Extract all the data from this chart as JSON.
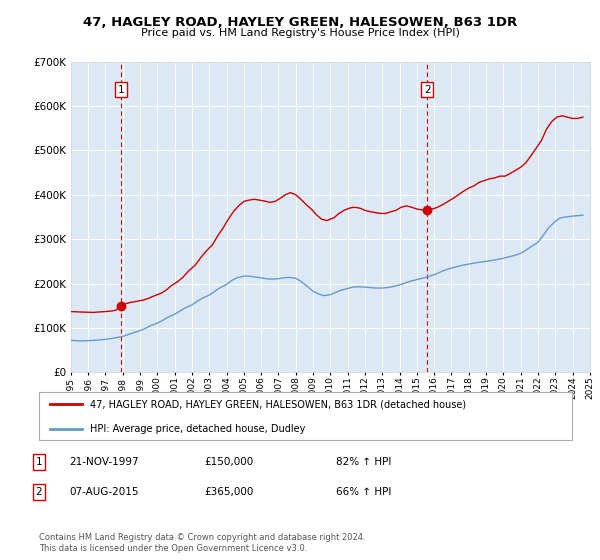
{
  "title": "47, HAGLEY ROAD, HAYLEY GREEN, HALESOWEN, B63 1DR",
  "subtitle": "Price paid vs. HM Land Registry's House Price Index (HPI)",
  "legend_line1": "47, HAGLEY ROAD, HAYLEY GREEN, HALESOWEN, B63 1DR (detached house)",
  "legend_line2": "HPI: Average price, detached house, Dudley",
  "sale1_date": "21-NOV-1997",
  "sale1_price": 150000,
  "sale1_hpi": "82% ↑ HPI",
  "sale1_year": 1997.9,
  "sale2_date": "07-AUG-2015",
  "sale2_price": 365000,
  "sale2_hpi": "66% ↑ HPI",
  "sale2_year": 2015.6,
  "footer1": "Contains HM Land Registry data © Crown copyright and database right 2024.",
  "footer2": "This data is licensed under the Open Government Licence v3.0.",
  "red_color": "#cc0000",
  "blue_color": "#6699cc",
  "background_color": "#dce9f5",
  "plot_bg": "#ffffff",
  "ylim": [
    0,
    700000
  ],
  "xlim_start": 1995,
  "xlim_end": 2025,
  "red_line_data": {
    "years": [
      1995.0,
      1995.3,
      1995.6,
      1996.0,
      1996.3,
      1996.6,
      1997.0,
      1997.3,
      1997.6,
      1997.9,
      1998.2,
      1998.5,
      1998.8,
      1999.2,
      1999.5,
      1999.8,
      2000.2,
      2000.5,
      2000.8,
      2001.2,
      2001.5,
      2001.8,
      2002.2,
      2002.5,
      2002.8,
      2003.2,
      2003.5,
      2003.8,
      2004.1,
      2004.4,
      2004.7,
      2005.0,
      2005.3,
      2005.6,
      2005.9,
      2006.2,
      2006.5,
      2006.8,
      2007.1,
      2007.4,
      2007.7,
      2008.0,
      2008.3,
      2008.6,
      2008.9,
      2009.2,
      2009.5,
      2009.8,
      2010.2,
      2010.5,
      2010.8,
      2011.1,
      2011.4,
      2011.7,
      2012.0,
      2012.3,
      2012.6,
      2012.9,
      2013.2,
      2013.5,
      2013.8,
      2014.1,
      2014.4,
      2014.7,
      2015.0,
      2015.3,
      2015.6,
      2015.9,
      2016.2,
      2016.5,
      2016.8,
      2017.1,
      2017.4,
      2017.7,
      2018.0,
      2018.3,
      2018.6,
      2018.9,
      2019.2,
      2019.5,
      2019.8,
      2020.1,
      2020.4,
      2020.7,
      2021.0,
      2021.3,
      2021.6,
      2021.9,
      2022.2,
      2022.5,
      2022.8,
      2023.1,
      2023.4,
      2023.7,
      2024.0,
      2024.3,
      2024.6
    ],
    "values": [
      137000,
      136500,
      136000,
      135500,
      135000,
      136000,
      137000,
      138000,
      140000,
      150000,
      155000,
      158000,
      160000,
      163000,
      167000,
      172000,
      178000,
      185000,
      195000,
      205000,
      215000,
      228000,
      242000,
      258000,
      272000,
      288000,
      308000,
      325000,
      345000,
      362000,
      375000,
      385000,
      388000,
      390000,
      388000,
      386000,
      383000,
      385000,
      392000,
      400000,
      405000,
      400000,
      390000,
      378000,
      368000,
      355000,
      345000,
      342000,
      348000,
      358000,
      365000,
      370000,
      372000,
      370000,
      365000,
      362000,
      360000,
      358000,
      358000,
      362000,
      365000,
      372000,
      375000,
      372000,
      368000,
      366000,
      365000,
      368000,
      372000,
      378000,
      385000,
      392000,
      400000,
      408000,
      415000,
      420000,
      428000,
      432000,
      436000,
      438000,
      442000,
      442000,
      448000,
      455000,
      462000,
      472000,
      488000,
      505000,
      522000,
      548000,
      565000,
      575000,
      578000,
      575000,
      572000,
      572000,
      575000
    ]
  },
  "blue_line_data": {
    "years": [
      1995.0,
      1995.3,
      1995.6,
      1996.0,
      1996.3,
      1996.6,
      1997.0,
      1997.3,
      1997.6,
      1998.0,
      1998.3,
      1998.6,
      1999.0,
      1999.3,
      1999.6,
      2000.0,
      2000.3,
      2000.6,
      2001.0,
      2001.3,
      2001.6,
      2002.0,
      2002.3,
      2002.6,
      2003.0,
      2003.3,
      2003.6,
      2004.0,
      2004.3,
      2004.6,
      2005.0,
      2005.3,
      2005.6,
      2006.0,
      2006.3,
      2006.6,
      2007.0,
      2007.3,
      2007.6,
      2008.0,
      2008.3,
      2008.6,
      2009.0,
      2009.3,
      2009.6,
      2010.0,
      2010.3,
      2010.6,
      2011.0,
      2011.3,
      2011.6,
      2012.0,
      2012.3,
      2012.6,
      2013.0,
      2013.3,
      2013.6,
      2014.0,
      2014.3,
      2014.6,
      2015.0,
      2015.3,
      2015.6,
      2016.0,
      2016.3,
      2016.6,
      2017.0,
      2017.3,
      2017.6,
      2018.0,
      2018.3,
      2018.6,
      2019.0,
      2019.3,
      2019.6,
      2020.0,
      2020.3,
      2020.6,
      2021.0,
      2021.3,
      2021.6,
      2022.0,
      2022.3,
      2022.6,
      2023.0,
      2023.3,
      2023.6,
      2024.0,
      2024.3,
      2024.6
    ],
    "values": [
      72000,
      71500,
      71000,
      71500,
      72000,
      73000,
      74500,
      76000,
      78000,
      81000,
      85000,
      89000,
      94000,
      99000,
      105000,
      111000,
      117000,
      124000,
      131000,
      138000,
      145000,
      152000,
      160000,
      167000,
      174000,
      182000,
      190000,
      198000,
      207000,
      213000,
      217000,
      217000,
      215000,
      213000,
      211000,
      210000,
      211000,
      213000,
      214000,
      212000,
      205000,
      196000,
      183000,
      177000,
      173000,
      175000,
      180000,
      185000,
      189000,
      192000,
      193000,
      192000,
      191000,
      190000,
      190000,
      191000,
      193000,
      197000,
      201000,
      205000,
      209000,
      212000,
      215000,
      220000,
      225000,
      230000,
      235000,
      238000,
      241000,
      244000,
      246000,
      248000,
      250000,
      252000,
      254000,
      257000,
      260000,
      263000,
      268000,
      275000,
      283000,
      293000,
      308000,
      325000,
      340000,
      348000,
      350000,
      352000,
      353000,
      354000
    ]
  }
}
